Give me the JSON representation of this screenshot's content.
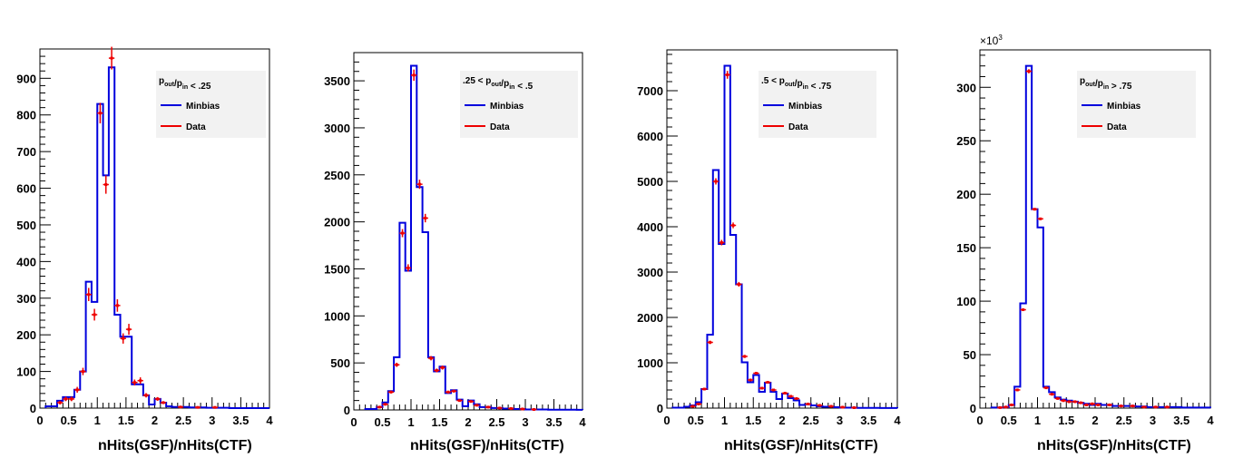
{
  "chart_data": [
    {
      "type": "histogram",
      "title": "",
      "xlabel": "nHits(GSF)/nHits(CTF)",
      "ylabel": "",
      "xlim": [
        0,
        4
      ],
      "ylim": [
        0,
        980
      ],
      "xticks": [
        0,
        0.5,
        1,
        1.5,
        2,
        2.5,
        3,
        3.5,
        4
      ],
      "xtick_labels": [
        "0",
        "0.5",
        "1",
        "1.5",
        "2",
        "2.5",
        "3",
        "3.5",
        "4"
      ],
      "yticks": [
        0,
        100,
        200,
        300,
        400,
        500,
        600,
        700,
        800,
        900
      ],
      "ytick_labels": [
        "0",
        "100",
        "200",
        "300",
        "400",
        "500",
        "600",
        "700",
        "800",
        "900"
      ],
      "y_exponent": "",
      "legend": {
        "header_parts": [
          {
            "t": "p",
            "sub": false
          },
          {
            "t": "out",
            "sub": true
          },
          {
            "t": "/p",
            "sub": false
          },
          {
            "t": "in",
            "sub": true
          },
          {
            "t": " < .25",
            "sub": false
          }
        ],
        "placement": "top-right"
      },
      "bin_edges": [
        0.1,
        0.3,
        0.4,
        0.5,
        0.6,
        0.7,
        0.8,
        0.9,
        1.0,
        1.1,
        1.2,
        1.3,
        1.4,
        1.5,
        1.6,
        1.7,
        1.8,
        1.9,
        2.0,
        2.1,
        2.2,
        2.3,
        2.4,
        2.5,
        2.6,
        2.7,
        2.8,
        2.9,
        3.0,
        3.1,
        3.2,
        3.3,
        3.4,
        3.5,
        3.6,
        3.7,
        3.8,
        3.9,
        4.0
      ],
      "series": [
        {
          "name": "Minbias",
          "color": "#0000dd",
          "style": "step",
          "values": [
            5,
            20,
            30,
            30,
            50,
            100,
            345,
            290,
            830,
            635,
            930,
            255,
            195,
            195,
            65,
            65,
            35,
            10,
            25,
            15,
            5,
            3,
            3,
            3,
            2,
            2,
            2,
            1,
            1,
            1,
            1,
            0,
            0,
            0,
            0,
            0,
            0,
            0
          ]
        },
        {
          "name": "Data",
          "color": "#ee0000",
          "style": "errorbar",
          "points": [
            [
              0.35,
              15,
              5
            ],
            [
              0.45,
              25,
              6
            ],
            [
              0.55,
              25,
              6
            ],
            [
              0.65,
              50,
              8
            ],
            [
              0.75,
              100,
              10
            ],
            [
              0.85,
              310,
              18
            ],
            [
              0.95,
              255,
              16
            ],
            [
              1.05,
              805,
              28
            ],
            [
              1.15,
              610,
              25
            ],
            [
              1.25,
              955,
              31
            ],
            [
              1.35,
              280,
              17
            ],
            [
              1.45,
              190,
              14
            ],
            [
              1.55,
              215,
              15
            ],
            [
              1.65,
              70,
              8
            ],
            [
              1.75,
              75,
              9
            ],
            [
              1.85,
              35,
              6
            ],
            [
              2.05,
              25,
              5
            ],
            [
              2.15,
              15,
              4
            ],
            [
              2.45,
              3,
              2
            ],
            [
              2.75,
              2,
              1.5
            ],
            [
              3.05,
              2,
              1.5
            ]
          ]
        }
      ]
    },
    {
      "type": "histogram",
      "title": "",
      "xlabel": "nHits(GSF)/nHits(CTF)",
      "ylabel": "",
      "xlim": [
        0,
        4
      ],
      "ylim": [
        0,
        3800
      ],
      "xticks": [
        0,
        0.5,
        1,
        1.5,
        2,
        2.5,
        3,
        3.5,
        4
      ],
      "xtick_labels": [
        "0",
        "0.5",
        "1",
        "1.5",
        "2",
        "2.5",
        "3",
        "3.5",
        "4"
      ],
      "yticks": [
        0,
        500,
        1000,
        1500,
        2000,
        2500,
        3000,
        3500
      ],
      "ytick_labels": [
        "0",
        "500",
        "1000",
        "1500",
        "2000",
        "2500",
        "3000",
        "3500"
      ],
      "y_exponent": "",
      "legend": {
        "header_parts": [
          {
            "t": ".25 < p",
            "sub": false
          },
          {
            "t": "out",
            "sub": true
          },
          {
            "t": "/p",
            "sub": false
          },
          {
            "t": "in",
            "sub": true
          },
          {
            "t": " < .5",
            "sub": false
          }
        ],
        "placement": "top-right"
      },
      "bin_edges": [
        0.2,
        0.4,
        0.5,
        0.6,
        0.7,
        0.8,
        0.9,
        1.0,
        1.1,
        1.2,
        1.3,
        1.4,
        1.5,
        1.6,
        1.7,
        1.8,
        1.9,
        2.0,
        2.1,
        2.2,
        2.3,
        2.4,
        2.5,
        2.6,
        2.7,
        2.8,
        2.9,
        3.0,
        3.1,
        3.2,
        3.3,
        3.4,
        3.5,
        3.6,
        3.7,
        3.8,
        3.9,
        4.0
      ],
      "series": [
        {
          "name": "Minbias",
          "color": "#0000dd",
          "style": "step",
          "values": [
            10,
            30,
            80,
            200,
            560,
            1990,
            1480,
            3660,
            2370,
            1890,
            560,
            410,
            460,
            180,
            210,
            110,
            40,
            100,
            60,
            30,
            30,
            20,
            20,
            15,
            15,
            10,
            10,
            5,
            5,
            5,
            5,
            3,
            3,
            2,
            2,
            2,
            1
          ]
        },
        {
          "name": "Data",
          "color": "#ee0000",
          "style": "errorbar",
          "points": [
            [
              0.45,
              30,
              6
            ],
            [
              0.55,
              60,
              8
            ],
            [
              0.65,
              190,
              14
            ],
            [
              0.75,
              480,
              22
            ],
            [
              0.85,
              1880,
              43
            ],
            [
              0.95,
              1510,
              39
            ],
            [
              1.05,
              3560,
              60
            ],
            [
              1.15,
              2400,
              49
            ],
            [
              1.25,
              2040,
              45
            ],
            [
              1.35,
              550,
              23
            ],
            [
              1.45,
              420,
              20
            ],
            [
              1.55,
              450,
              21
            ],
            [
              1.65,
              190,
              14
            ],
            [
              1.75,
              200,
              14
            ],
            [
              1.85,
              100,
              10
            ],
            [
              2.05,
              90,
              9
            ],
            [
              2.15,
              50,
              7
            ],
            [
              2.35,
              30,
              5
            ],
            [
              2.55,
              20,
              4
            ],
            [
              2.75,
              15,
              4
            ],
            [
              2.95,
              10,
              3
            ],
            [
              3.15,
              5,
              2
            ]
          ]
        }
      ]
    },
    {
      "type": "histogram",
      "title": "",
      "xlabel": "nHits(GSF)/nHits(CTF)",
      "ylabel": "",
      "xlim": [
        0,
        4
      ],
      "ylim": [
        0,
        7900
      ],
      "xticks": [
        0,
        0.5,
        1,
        1.5,
        2,
        2.5,
        3,
        3.5,
        4
      ],
      "xtick_labels": [
        "0",
        "0.5",
        "1",
        "1.5",
        "2",
        "2.5",
        "3",
        "3.5",
        "4"
      ],
      "yticks": [
        0,
        1000,
        2000,
        3000,
        4000,
        5000,
        6000,
        7000
      ],
      "ytick_labels": [
        "0",
        "1000",
        "2000",
        "3000",
        "4000",
        "5000",
        "6000",
        "7000"
      ],
      "y_exponent": "",
      "legend": {
        "header_parts": [
          {
            "t": ".5 < p",
            "sub": false
          },
          {
            "t": "out",
            "sub": true
          },
          {
            "t": "/p",
            "sub": false
          },
          {
            "t": "in",
            "sub": true
          },
          {
            "t": " < .75",
            "sub": false
          }
        ],
        "placement": "top-right"
      },
      "bin_edges": [
        0.1,
        0.3,
        0.4,
        0.5,
        0.6,
        0.7,
        0.8,
        0.9,
        1.0,
        1.1,
        1.2,
        1.3,
        1.4,
        1.5,
        1.6,
        1.7,
        1.8,
        1.9,
        2.0,
        2.1,
        2.2,
        2.3,
        2.4,
        2.5,
        2.6,
        2.7,
        2.8,
        2.9,
        3.0,
        3.1,
        3.2,
        3.3,
        3.4,
        3.5,
        3.6,
        3.7,
        3.8,
        3.9,
        4.0
      ],
      "series": [
        {
          "name": "Minbias",
          "color": "#0000dd",
          "style": "step",
          "values": [
            10,
            30,
            60,
            130,
            420,
            1620,
            5250,
            3620,
            7550,
            3820,
            2730,
            1010,
            570,
            730,
            360,
            560,
            360,
            200,
            320,
            220,
            170,
            70,
            90,
            60,
            40,
            30,
            30,
            20,
            10,
            10,
            10,
            5,
            5,
            5,
            5,
            3,
            3,
            2
          ]
        },
        {
          "name": "Data",
          "color": "#ee0000",
          "style": "errorbar",
          "points": [
            [
              0.45,
              40,
              6
            ],
            [
              0.55,
              90,
              9
            ],
            [
              0.65,
              420,
              20
            ],
            [
              0.75,
              1450,
              38
            ],
            [
              0.85,
              5000,
              70
            ],
            [
              0.95,
              3650,
              60
            ],
            [
              1.05,
              7350,
              86
            ],
            [
              1.15,
              4030,
              63
            ],
            [
              1.25,
              2730,
              52
            ],
            [
              1.35,
              1140,
              34
            ],
            [
              1.45,
              620,
              25
            ],
            [
              1.55,
              770,
              28
            ],
            [
              1.65,
              440,
              21
            ],
            [
              1.75,
              570,
              24
            ],
            [
              1.85,
              400,
              20
            ],
            [
              2.05,
              330,
              18
            ],
            [
              2.15,
              260,
              16
            ],
            [
              2.25,
              210,
              14
            ],
            [
              2.45,
              90,
              9
            ],
            [
              2.65,
              60,
              8
            ],
            [
              2.85,
              40,
              6
            ],
            [
              3.05,
              20,
              4
            ],
            [
              3.25,
              10,
              3
            ]
          ]
        }
      ]
    },
    {
      "type": "histogram",
      "title": "",
      "xlabel": "nHits(GSF)/nHits(CTF)",
      "ylabel": "",
      "xlim": [
        0,
        4
      ],
      "ylim": [
        0,
        335
      ],
      "xticks": [
        0,
        0.5,
        1,
        1.5,
        2,
        2.5,
        3,
        3.5,
        4
      ],
      "xtick_labels": [
        "0",
        "0.5",
        "1",
        "1.5",
        "2",
        "2.5",
        "3",
        "3.5",
        "4"
      ],
      "yticks": [
        0,
        50,
        100,
        150,
        200,
        250,
        300
      ],
      "ytick_labels": [
        "0",
        "50",
        "100",
        "150",
        "200",
        "250",
        "300"
      ],
      "y_exponent": "×10",
      "y_exponent_power": "3",
      "legend": {
        "header_parts": [
          {
            "t": "p",
            "sub": false
          },
          {
            "t": "out",
            "sub": true
          },
          {
            "t": "/p",
            "sub": false
          },
          {
            "t": "in",
            "sub": true
          },
          {
            "t": " > .75",
            "sub": false
          }
        ],
        "placement": "top-right"
      },
      "bin_edges": [
        0.2,
        0.4,
        0.5,
        0.6,
        0.7,
        0.8,
        0.9,
        1.0,
        1.1,
        1.2,
        1.3,
        1.4,
        1.5,
        1.6,
        1.7,
        1.8,
        1.9,
        2.0,
        2.1,
        2.2,
        2.3,
        2.4,
        2.5,
        2.6,
        2.7,
        2.8,
        2.9,
        3.0,
        3.1,
        3.2,
        3.3,
        3.4,
        3.5,
        3.6,
        3.7,
        3.8,
        3.9,
        4.0
      ],
      "series": [
        {
          "name": "Minbias",
          "color": "#0000dd",
          "style": "step",
          "values": [
            0.5,
            1,
            3,
            20,
            98,
            320,
            186,
            169,
            20,
            15,
            10,
            8,
            7,
            6,
            5,
            4,
            3,
            4,
            3,
            3,
            2,
            2,
            2,
            2,
            1.5,
            1.5,
            1,
            1,
            1,
            1,
            1,
            1,
            0.5,
            0.5,
            0.5,
            0.5,
            0.5
          ]
        },
        {
          "name": "Data",
          "color": "#ee0000",
          "style": "errorbar",
          "points": [
            [
              0.35,
              0.5,
              0.3
            ],
            [
              0.45,
              1,
              0.3
            ],
            [
              0.55,
              3,
              0.5
            ],
            [
              0.65,
              17,
              1
            ],
            [
              0.75,
              92,
              1
            ],
            [
              0.85,
              315,
              2
            ],
            [
              0.95,
              186,
              1
            ],
            [
              1.05,
              177,
              1
            ],
            [
              1.15,
              19,
              1
            ],
            [
              1.25,
              13,
              1
            ],
            [
              1.35,
              9,
              1
            ],
            [
              1.45,
              7,
              1
            ],
            [
              1.55,
              6,
              1
            ],
            [
              1.65,
              6,
              1
            ],
            [
              1.75,
              5,
              1
            ],
            [
              1.85,
              3,
              0.5
            ],
            [
              1.95,
              4,
              0.5
            ],
            [
              2.05,
              3,
              0.5
            ],
            [
              2.25,
              3,
              0.5
            ],
            [
              2.45,
              2,
              0.5
            ],
            [
              2.65,
              2,
              0.5
            ],
            [
              2.85,
              1,
              0.5
            ],
            [
              3.05,
              1,
              0.5
            ],
            [
              3.25,
              1,
              0.5
            ]
          ]
        }
      ]
    }
  ]
}
